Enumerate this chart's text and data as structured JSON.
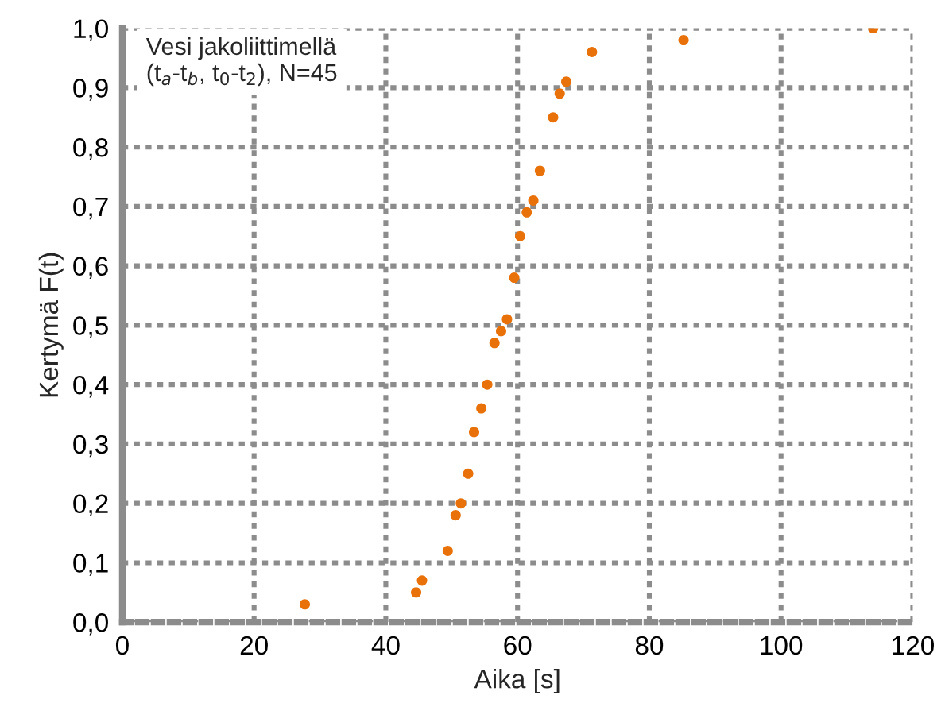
{
  "chart_data": {
    "type": "scatter",
    "xlabel": "Aika [s]",
    "ylabel": "Kertymä F(t)",
    "annotations": [
      "Vesi jakoliittimellä\n(t$_{a}$-t$_{b}$, t$_{0}$-t$_{2}$), N=45"
    ],
    "series": [
      {
        "color": "#e8710a",
        "x": [
          27.7,
          44.6,
          45.5,
          49.4,
          50.6,
          51.4,
          52.5,
          53.4,
          54.5,
          55.4,
          56.5,
          57.5,
          58.4,
          59.5,
          60.4,
          61.4,
          62.4,
          63.4,
          65.4,
          66.4,
          67.4,
          71.3,
          85.2,
          114.0
        ],
        "values": [
          0.03,
          0.05,
          0.07,
          0.12,
          0.18,
          0.2,
          0.25,
          0.32,
          0.36,
          0.4,
          0.47,
          0.49,
          0.51,
          0.58,
          0.65,
          0.69,
          0.71,
          0.76,
          0.85,
          0.89,
          0.91,
          0.96,
          0.98,
          1.0
        ]
      }
    ],
    "marker": "circle",
    "xlim": [
      0,
      120
    ],
    "xticks": [
      0,
      20,
      40,
      60,
      80,
      100,
      120
    ],
    "ylim": [
      0,
      1
    ],
    "yticks": [
      {
        "value": 0,
        "label": "0,0"
      },
      {
        "value": 0.1,
        "label": "0,1"
      },
      {
        "value": 0.2,
        "label": "0,2"
      },
      {
        "value": 0.3,
        "label": "0,3"
      },
      {
        "value": 0.4,
        "label": "0,4"
      },
      {
        "value": 0.5,
        "label": "0,5"
      },
      {
        "value": 0.6,
        "label": "0,6"
      },
      {
        "value": 0.7,
        "label": "0,7"
      },
      {
        "value": 0.8,
        "label": "0,8"
      },
      {
        "value": 0.9,
        "label": "0,9"
      },
      {
        "value": 1.0,
        "label": "1,0"
      }
    ],
    "grid": true
  }
}
